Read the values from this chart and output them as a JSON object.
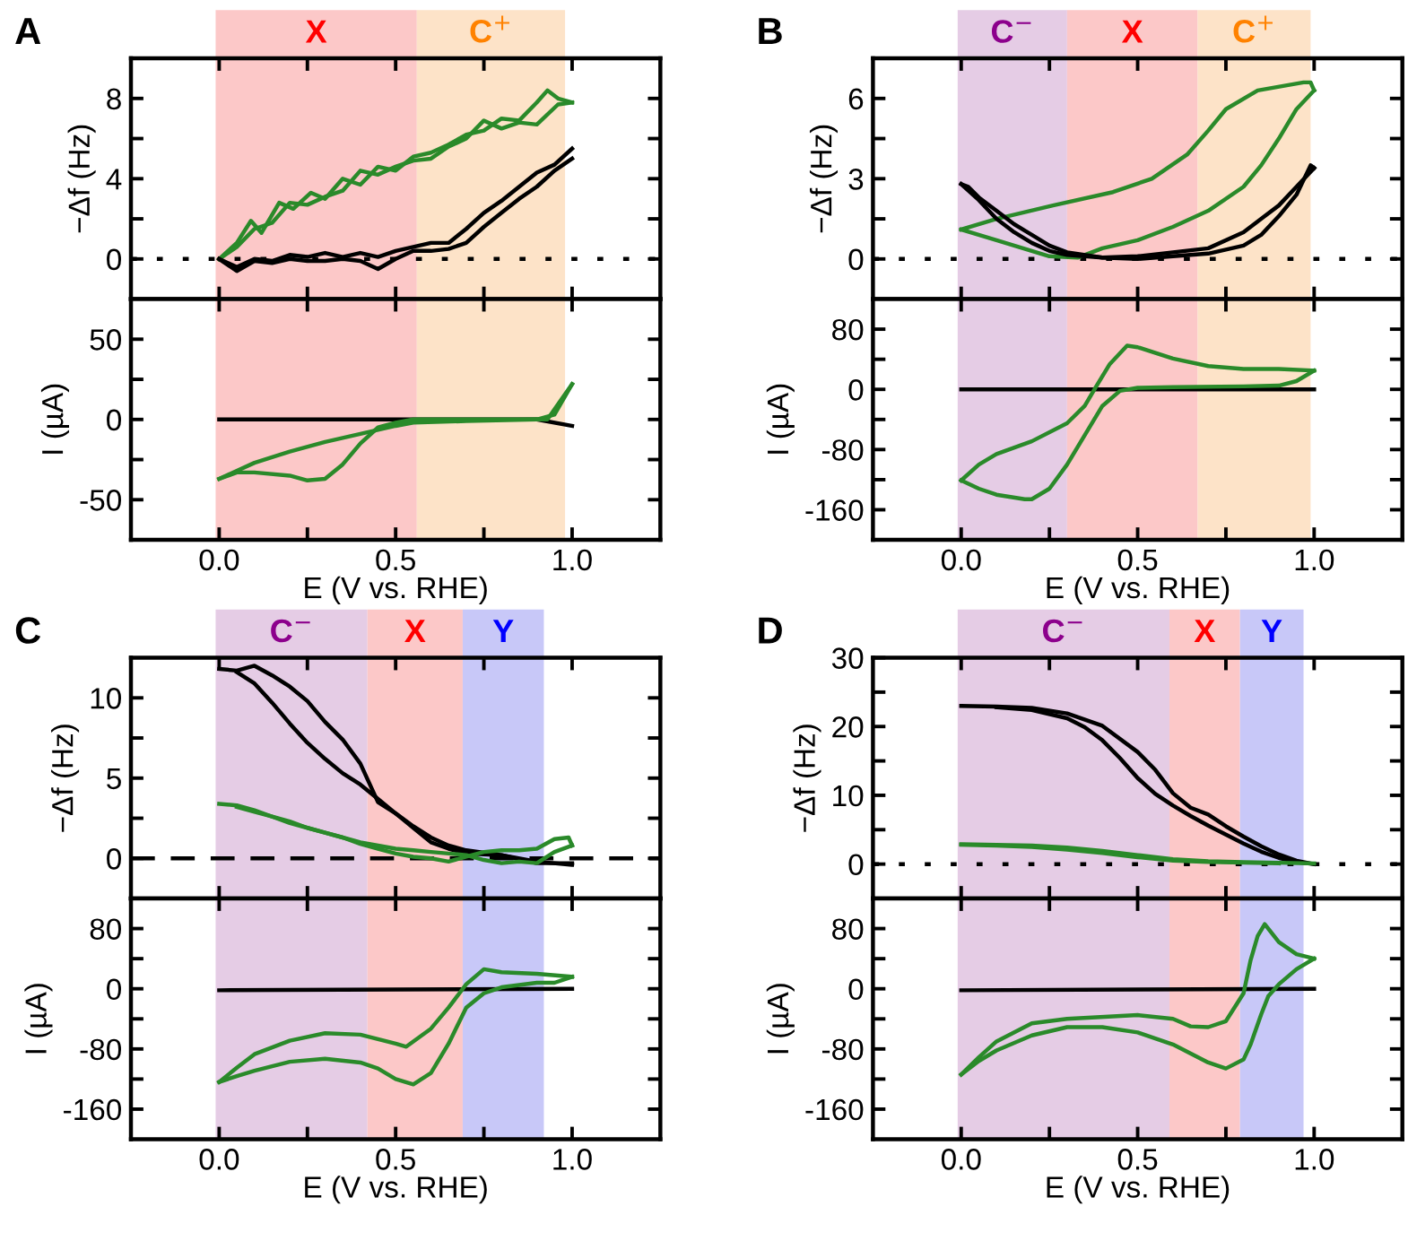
{
  "chart_data": [
    {
      "type": "line",
      "title": "A",
      "ylabel": "−Δf (Hz)",
      "xlim": [
        -0.25,
        1.25
      ],
      "ylim": [
        -2,
        10
      ],
      "tick_labels": "y",
      "xticks": [
        {
          "value": 0,
          "label": null
        },
        {
          "value": 0.25,
          "label": null
        },
        {
          "value": 0.5,
          "label": null
        },
        {
          "value": 0.75,
          "label": null
        },
        {
          "value": 1,
          "label": null
        }
      ],
      "yticks": [
        0,
        {
          "value": 2,
          "label": null
        },
        4,
        {
          "value": 6,
          "label": null
        },
        8
      ],
      "bands": [
        {
          "axis": "x",
          "from": -0.01,
          "to": 0.56,
          "label": "X",
          "color": "#fcc8c8"
        },
        {
          "axis": "x",
          "from": 0.56,
          "to": 0.98,
          "label": "C$^{+}$",
          "color": "#fde3c8"
        }
      ],
      "ref_lines": [
        {
          "axis": "y",
          "value": 0,
          "line_style": "dotted",
          "color": "#000000"
        }
      ],
      "series": [
        {
          "color": "#2a8a2a",
          "x": [
            0,
            0.05,
            0.09,
            0.12,
            0.17,
            0.21,
            0.26,
            0.3,
            0.35,
            0.4,
            0.45,
            0.5,
            0.55,
            0.6,
            0.65,
            0.7,
            0.75,
            0.8,
            0.85,
            0.9,
            0.93,
            0.96,
            1.0
          ],
          "values": [
            0,
            0.8,
            1.9,
            1.3,
            2.8,
            2.5,
            3.3,
            3.0,
            4.0,
            3.7,
            4.6,
            4.4,
            5.1,
            5.3,
            5.7,
            6.2,
            6.4,
            7.0,
            6.9,
            7.8,
            8.4,
            8.0,
            7.8
          ]
        },
        {
          "color": "#2a8a2a",
          "x": [
            1.0,
            0.96,
            0.9,
            0.85,
            0.8,
            0.75,
            0.7,
            0.65,
            0.6,
            0.55,
            0.5,
            0.45,
            0.4,
            0.35,
            0.3,
            0.25,
            0.2,
            0.15,
            0.1,
            0.05,
            0.0
          ],
          "values": [
            7.8,
            7.7,
            6.7,
            6.8,
            6.5,
            6.9,
            6.0,
            5.6,
            5.0,
            4.9,
            4.6,
            4.2,
            4.4,
            3.4,
            3.1,
            2.7,
            2.8,
            1.8,
            1.5,
            0.6,
            0.0
          ]
        },
        {
          "color": "#000000",
          "x": [
            0,
            0.05,
            0.1,
            0.15,
            0.2,
            0.25,
            0.3,
            0.35,
            0.4,
            0.45,
            0.5,
            0.55,
            0.6,
            0.65,
            0.7,
            0.75,
            0.8,
            0.85,
            0.9,
            0.95,
            1.0
          ],
          "values": [
            0,
            -0.4,
            0,
            -0.1,
            0.2,
            0.1,
            0.3,
            0.1,
            0.3,
            0.1,
            0.4,
            0.6,
            0.8,
            0.8,
            1.5,
            2.3,
            2.9,
            3.6,
            4.3,
            4.7,
            5.5
          ]
        },
        {
          "color": "#000000",
          "x": [
            1.0,
            0.95,
            0.9,
            0.85,
            0.8,
            0.75,
            0.7,
            0.65,
            0.6,
            0.55,
            0.5,
            0.45,
            0.4,
            0.35,
            0.3,
            0.25,
            0.2,
            0.15,
            0.1,
            0.05,
            0
          ],
          "values": [
            5.0,
            4.4,
            3.6,
            3.0,
            2.3,
            1.6,
            0.8,
            0.5,
            0.4,
            0.4,
            0,
            -0.5,
            -0.1,
            0,
            -0.1,
            -0.1,
            0,
            -0.2,
            -0.1,
            -0.6,
            0
          ]
        }
      ]
    },
    {
      "type": "line",
      "xlabel": "E (V vs. RHE)",
      "ylabel": "I (µA)",
      "xlim": [
        -0.25,
        1.25
      ],
      "ylim": [
        -75,
        75
      ],
      "xticks": [
        {
          "value": 0,
          "label": "0.0"
        },
        {
          "value": 0.25,
          "label": null
        },
        {
          "value": 0.5,
          "label": "0.5"
        },
        {
          "value": 0.75,
          "label": null
        },
        {
          "value": 1,
          "label": "1.0"
        }
      ],
      "yticks": [
        -50,
        {
          "value": -25,
          "label": null
        },
        0,
        {
          "value": 25,
          "label": null
        },
        50
      ],
      "bands": [
        {
          "axis": "x",
          "from": -0.01,
          "to": 0.56,
          "color": "#fcc8c8"
        },
        {
          "axis": "x",
          "from": 0.56,
          "to": 0.98,
          "color": "#fde3c8"
        }
      ],
      "series": [
        {
          "color": "#000000",
          "x": [
            0,
            0.9,
            1.0
          ],
          "values": [
            0,
            0,
            -4
          ]
        },
        {
          "color": "#2a8a2a",
          "x": [
            0,
            0.1,
            0.2,
            0.3,
            0.4,
            0.5,
            0.55,
            0.7,
            0.9,
            0.95,
            1.0
          ],
          "values": [
            -37,
            -27,
            -20,
            -14,
            -9,
            -4,
            -2,
            -1,
            0,
            3,
            22
          ]
        },
        {
          "color": "#2a8a2a",
          "x": [
            1.0,
            0.93,
            0.7,
            0.55,
            0.5,
            0.45,
            0.4,
            0.35,
            0.3,
            0.25,
            0.2,
            0.1,
            0.05,
            0
          ],
          "values": [
            22,
            0,
            0,
            0,
            -2,
            -5,
            -15,
            -28,
            -37,
            -38,
            -35,
            -33,
            -33,
            -37
          ]
        }
      ]
    },
    {
      "type": "line",
      "title": "B",
      "ylabel": "−Δf (Hz)",
      "xlim": [
        -0.25,
        1.25
      ],
      "ylim": [
        -1.5,
        7.5
      ],
      "tick_labels": "y",
      "xticks": [
        {
          "value": 0,
          "label": null
        },
        {
          "value": 0.25,
          "label": null
        },
        {
          "value": 0.5,
          "label": null
        },
        {
          "value": 0.75,
          "label": null
        },
        {
          "value": 1,
          "label": null
        }
      ],
      "yticks": [
        0,
        {
          "value": 1.5,
          "label": null
        },
        3,
        {
          "value": 4.5,
          "label": null
        },
        6
      ],
      "bands": [
        {
          "axis": "x",
          "from": -0.01,
          "to": 0.3,
          "label": "C$^{−}$",
          "color": "#e5cce5"
        },
        {
          "axis": "x",
          "from": 0.3,
          "to": 0.67,
          "label": "X",
          "color": "#fcc8c8"
        },
        {
          "axis": "x",
          "from": 0.67,
          "to": 0.99,
          "label": "C$^{+}$",
          "color": "#fde3c8"
        }
      ],
      "ref_lines": [
        {
          "axis": "y",
          "value": 0,
          "line_style": "dotted",
          "color": "#000000"
        }
      ],
      "series": [
        {
          "color": "#2a8a2a",
          "x": [
            0,
            0.1,
            0.26,
            0.43,
            0.54,
            0.64,
            0.7,
            0.75,
            0.84,
            0.97,
            0.99,
            1.0
          ],
          "values": [
            1.1,
            1.5,
            2.0,
            2.5,
            3.0,
            3.9,
            4.8,
            5.6,
            6.3,
            6.6,
            6.6,
            6.3
          ]
        },
        {
          "color": "#2a8a2a",
          "x": [
            1.0,
            0.95,
            0.9,
            0.85,
            0.8,
            0.7,
            0.6,
            0.5,
            0.4,
            0.33,
            0.25,
            0.2,
            0.1,
            0
          ],
          "values": [
            6.3,
            5.6,
            4.5,
            3.5,
            2.7,
            1.8,
            1.2,
            0.7,
            0.4,
            0.05,
            0.1,
            0.3,
            0.7,
            1.1
          ]
        },
        {
          "color": "#000000",
          "x": [
            0,
            0.05,
            0.1,
            0.15,
            0.2,
            0.25,
            0.3,
            0.4,
            0.5,
            0.6,
            0.7,
            0.8,
            0.85,
            0.9,
            0.95,
            0.99,
            1.0
          ],
          "values": [
            2.8,
            2.2,
            1.5,
            1.0,
            0.6,
            0.3,
            0.15,
            0.05,
            0.0,
            0.1,
            0.2,
            0.5,
            0.9,
            1.6,
            2.4,
            3.5,
            3.4
          ]
        },
        {
          "color": "#000000",
          "x": [
            1.0,
            0.95,
            0.9,
            0.85,
            0.8,
            0.7,
            0.6,
            0.5,
            0.4,
            0.3,
            0.25,
            0.2,
            0.15,
            0.1,
            0.05,
            0.02,
            0
          ],
          "values": [
            3.4,
            2.7,
            2.0,
            1.5,
            1.0,
            0.4,
            0.25,
            0.1,
            0.05,
            0.25,
            0.5,
            0.9,
            1.3,
            1.8,
            2.3,
            2.7,
            2.8
          ]
        }
      ]
    },
    {
      "type": "line",
      "xlabel": "E (V vs. RHE)",
      "ylabel": "I (µA)",
      "xlim": [
        -0.25,
        1.25
      ],
      "ylim": [
        -200,
        120
      ],
      "xticks": [
        {
          "value": 0,
          "label": "0.0"
        },
        {
          "value": 0.25,
          "label": null
        },
        {
          "value": 0.5,
          "label": "0.5"
        },
        {
          "value": 0.75,
          "label": null
        },
        {
          "value": 1,
          "label": "1.0"
        }
      ],
      "yticks": [
        -160,
        {
          "value": -120,
          "label": null
        },
        -80,
        {
          "value": -40,
          "label": null
        },
        0,
        {
          "value": 40,
          "label": null
        },
        80
      ],
      "bands": [
        {
          "axis": "x",
          "from": -0.01,
          "to": 0.3,
          "color": "#e5cce5"
        },
        {
          "axis": "x",
          "from": 0.3,
          "to": 0.67,
          "color": "#fcc8c8"
        },
        {
          "axis": "x",
          "from": 0.67,
          "to": 0.99,
          "color": "#fde3c8"
        }
      ],
      "series": [
        {
          "color": "#000000",
          "x": [
            0,
            1.0
          ],
          "values": [
            0,
            0
          ]
        },
        {
          "color": "#2a8a2a",
          "x": [
            0,
            0.05,
            0.1,
            0.2,
            0.3,
            0.35,
            0.38,
            0.42,
            0.47,
            0.5,
            0.6,
            0.7,
            0.8,
            0.9,
            1.0
          ],
          "values": [
            -121,
            -100,
            -86,
            -69,
            -45,
            -22,
            2,
            33,
            58,
            56,
            41,
            31,
            27,
            27,
            25
          ]
        },
        {
          "color": "#2a8a2a",
          "x": [
            1.0,
            0.95,
            0.9,
            0.8,
            0.6,
            0.5,
            0.45,
            0.4,
            0.35,
            0.3,
            0.25,
            0.2,
            0.18,
            0.1,
            0.05,
            0
          ],
          "values": [
            25,
            11,
            5,
            4,
            3,
            2,
            -2,
            -22,
            -61,
            -100,
            -132,
            -146,
            -146,
            -140,
            -132,
            -121
          ]
        }
      ]
    },
    {
      "type": "line",
      "title": "C",
      "ylabel": "−Δf (Hz)",
      "xlim": [
        -0.25,
        1.25
      ],
      "ylim": [
        -2.5,
        12.5
      ],
      "tick_labels": "y",
      "xticks": [
        {
          "value": 0,
          "label": null
        },
        {
          "value": 0.25,
          "label": null
        },
        {
          "value": 0.5,
          "label": null
        },
        {
          "value": 0.75,
          "label": null
        },
        {
          "value": 1,
          "label": null
        }
      ],
      "yticks": [
        0,
        {
          "value": 2.5,
          "label": null
        },
        5,
        {
          "value": 7.5,
          "label": null
        },
        10
      ],
      "bands": [
        {
          "axis": "x",
          "from": -0.01,
          "to": 0.42,
          "label": "C$^{−}$",
          "color": "#e5cce5"
        },
        {
          "axis": "x",
          "from": 0.42,
          "to": 0.69,
          "label": "X",
          "color": "#fcc8c8"
        },
        {
          "axis": "x",
          "from": 0.69,
          "to": 0.92,
          "label": "Y",
          "color": "#c8c8f8"
        }
      ],
      "ref_lines": [
        {
          "axis": "y",
          "value": 0,
          "line_style": "dashed",
          "color": "#000000"
        }
      ],
      "series": [
        {
          "color": "#000000",
          "x": [
            0,
            0.05,
            0.1,
            0.15,
            0.2,
            0.25,
            0.3,
            0.35,
            0.4,
            0.45,
            0.5,
            0.55,
            0.6,
            0.65,
            0.7,
            0.8,
            0.9,
            1.0
          ],
          "values": [
            11.8,
            11.7,
            12.0,
            11.4,
            10.7,
            9.8,
            8.5,
            7.4,
            5.9,
            3.5,
            2.8,
            1.9,
            1.0,
            0.6,
            0.3,
            0.2,
            -0.3,
            -0.3
          ]
        },
        {
          "color": "#000000",
          "x": [
            1.0,
            0.9,
            0.8,
            0.7,
            0.65,
            0.6,
            0.55,
            0.5,
            0.45,
            0.4,
            0.35,
            0.3,
            0.25,
            0.2,
            0.15,
            0.1,
            0.05
          ],
          "values": [
            -0.4,
            -0.2,
            0.2,
            0.5,
            0.8,
            1.3,
            2.0,
            2.8,
            3.7,
            4.6,
            5.3,
            6.2,
            7.2,
            8.4,
            9.7,
            10.9,
            11.6
          ]
        },
        {
          "color": "#2a8a2a",
          "x": [
            0,
            0.05,
            0.1,
            0.15,
            0.2,
            0.25,
            0.3,
            0.35,
            0.4,
            0.45,
            0.5,
            0.55,
            0.6,
            0.65,
            0.7,
            0.75,
            0.8,
            0.85,
            0.9,
            0.95,
            0.99,
            1.0
          ],
          "values": [
            3.4,
            3.3,
            3.0,
            2.6,
            2.2,
            1.9,
            1.6,
            1.3,
            0.9,
            0.6,
            0.3,
            0.1,
            0.0,
            -0.2,
            0.1,
            0.4,
            0.5,
            0.5,
            0.6,
            1.2,
            1.3,
            0.8
          ]
        },
        {
          "color": "#2a8a2a",
          "x": [
            1.0,
            0.95,
            0.9,
            0.85,
            0.8,
            0.75,
            0.7,
            0.65,
            0.6,
            0.55,
            0.5,
            0.45,
            0.4,
            0.35,
            0.3,
            0.25,
            0.2,
            0.15,
            0.1,
            0.05
          ],
          "values": [
            0.8,
            0.4,
            -0.3,
            -0.2,
            -0.3,
            -0.1,
            0.2,
            0.3,
            0.4,
            0.5,
            0.6,
            0.8,
            1.0,
            1.3,
            1.6,
            1.9,
            2.3,
            2.6,
            2.9,
            3.2
          ]
        }
      ]
    },
    {
      "type": "line",
      "xlabel": "E (V vs. RHE)",
      "ylabel": "I (µA)",
      "xlim": [
        -0.25,
        1.25
      ],
      "ylim": [
        -200,
        120
      ],
      "xticks": [
        {
          "value": 0,
          "label": "0.0"
        },
        {
          "value": 0.25,
          "label": null
        },
        {
          "value": 0.5,
          "label": "0.5"
        },
        {
          "value": 0.75,
          "label": null
        },
        {
          "value": 1,
          "label": "1.0"
        }
      ],
      "yticks": [
        -160,
        {
          "value": -120,
          "label": null
        },
        -80,
        {
          "value": -40,
          "label": null
        },
        0,
        {
          "value": 40,
          "label": null
        },
        80
      ],
      "bands": [
        {
          "axis": "x",
          "from": -0.01,
          "to": 0.42,
          "color": "#e5cce5"
        },
        {
          "axis": "x",
          "from": 0.42,
          "to": 0.69,
          "color": "#fcc8c8"
        },
        {
          "axis": "x",
          "from": 0.69,
          "to": 0.92,
          "color": "#c8c8f8"
        }
      ],
      "series": [
        {
          "color": "#000000",
          "x": [
            0,
            1.0
          ],
          "values": [
            -2,
            0
          ]
        },
        {
          "color": "#2a8a2a",
          "x": [
            0,
            0.05,
            0.1,
            0.2,
            0.3,
            0.4,
            0.5,
            0.53,
            0.6,
            0.65,
            0.7,
            0.75,
            0.8,
            0.9,
            1.0
          ],
          "values": [
            -124,
            -105,
            -87,
            -69,
            -59,
            -61,
            -73,
            -77,
            -53,
            -25,
            6,
            26,
            22,
            20,
            16
          ]
        },
        {
          "color": "#2a8a2a",
          "x": [
            1.0,
            0.95,
            0.9,
            0.8,
            0.75,
            0.7,
            0.65,
            0.6,
            0.55,
            0.5,
            0.45,
            0.4,
            0.3,
            0.2,
            0.1,
            0.05,
            0
          ],
          "values": [
            16,
            8,
            8,
            2,
            -6,
            -25,
            -73,
            -112,
            -127,
            -120,
            -106,
            -98,
            -93,
            -97,
            -109,
            -116,
            -124
          ]
        }
      ]
    },
    {
      "type": "line",
      "title": "D",
      "ylabel": "−Δf (Hz)",
      "xlim": [
        -0.25,
        1.25
      ],
      "ylim": [
        -5,
        30
      ],
      "tick_labels": "y",
      "xticks": [
        {
          "value": 0,
          "label": null
        },
        {
          "value": 0.25,
          "label": null
        },
        {
          "value": 0.5,
          "label": null
        },
        {
          "value": 0.75,
          "label": null
        },
        {
          "value": 1,
          "label": null
        }
      ],
      "yticks": [
        0,
        {
          "value": 5,
          "label": null
        },
        10,
        {
          "value": 15,
          "label": null
        },
        20,
        {
          "value": 25,
          "label": null
        },
        30
      ],
      "bands": [
        {
          "axis": "x",
          "from": -0.01,
          "to": 0.59,
          "label": "C$^{−}$",
          "color": "#e5cce5"
        },
        {
          "axis": "x",
          "from": 0.59,
          "to": 0.79,
          "label": "X",
          "color": "#fcc8c8"
        },
        {
          "axis": "x",
          "from": 0.79,
          "to": 0.97,
          "label": "Y",
          "color": "#c8c8f8"
        }
      ],
      "ref_lines": [
        {
          "axis": "y",
          "value": 0,
          "line_style": "dotted",
          "color": "#000000"
        }
      ],
      "series": [
        {
          "color": "#000000",
          "x": [
            0,
            0.1,
            0.2,
            0.3,
            0.4,
            0.5,
            0.55,
            0.6,
            0.65,
            0.7,
            0.75,
            0.8,
            0.85,
            0.9,
            0.95,
            1.0
          ],
          "values": [
            23.0,
            22.9,
            22.7,
            21.9,
            20.1,
            16.3,
            13.7,
            10.3,
            8.2,
            7.2,
            5.5,
            4.0,
            2.6,
            1.4,
            0.5,
            0
          ]
        },
        {
          "color": "#000000",
          "x": [
            1.0,
            0.95,
            0.9,
            0.85,
            0.8,
            0.75,
            0.7,
            0.65,
            0.6,
            0.55,
            0.5,
            0.45,
            0.4,
            0.35,
            0.3,
            0.2,
            0.1
          ],
          "values": [
            0,
            0.3,
            0.9,
            1.8,
            3.0,
            4.3,
            5.6,
            7.0,
            8.5,
            10.2,
            12.5,
            15.4,
            18.0,
            19.9,
            21.2,
            22.4,
            22.8
          ]
        },
        {
          "color": "#2a8a2a",
          "x": [
            0,
            0.1,
            0.2,
            0.3,
            0.4,
            0.5,
            0.6,
            0.7,
            0.8,
            0.9,
            1.0
          ],
          "values": [
            2.9,
            2.8,
            2.7,
            2.4,
            1.9,
            1.3,
            0.7,
            0.4,
            0.3,
            0.2,
            0.1
          ]
        },
        {
          "color": "#2a8a2a",
          "x": [
            0.9,
            0.8,
            0.7,
            0.6,
            0.5,
            0.4,
            0.3,
            0.2,
            0.1,
            0
          ],
          "values": [
            0.1,
            0.2,
            0.3,
            0.5,
            1.0,
            1.6,
            2.1,
            2.5,
            2.7,
            2.8
          ]
        }
      ]
    },
    {
      "type": "line",
      "xlabel": "E (V vs. RHE)",
      "ylabel": "I (µA)",
      "xlim": [
        -0.25,
        1.25
      ],
      "ylim": [
        -200,
        120
      ],
      "xticks": [
        {
          "value": 0,
          "label": "0.0"
        },
        {
          "value": 0.25,
          "label": null
        },
        {
          "value": 0.5,
          "label": "0.5"
        },
        {
          "value": 0.75,
          "label": null
        },
        {
          "value": 1,
          "label": "1.0"
        }
      ],
      "yticks": [
        -160,
        {
          "value": -120,
          "label": null
        },
        -80,
        {
          "value": -40,
          "label": null
        },
        0,
        {
          "value": 40,
          "label": null
        },
        80
      ],
      "bands": [
        {
          "axis": "x",
          "from": -0.01,
          "to": 0.59,
          "color": "#e5cce5"
        },
        {
          "axis": "x",
          "from": 0.59,
          "to": 0.79,
          "color": "#fcc8c8"
        },
        {
          "axis": "x",
          "from": 0.79,
          "to": 0.97,
          "color": "#c8c8f8"
        }
      ],
      "series": [
        {
          "color": "#000000",
          "x": [
            0,
            1.0
          ],
          "values": [
            -2,
            0
          ]
        },
        {
          "color": "#2a8a2a",
          "x": [
            0,
            0.05,
            0.1,
            0.2,
            0.3,
            0.5,
            0.6,
            0.65,
            0.7,
            0.75,
            0.8,
            0.82,
            0.84,
            0.86,
            0.9,
            0.95,
            1.0
          ],
          "values": [
            -114,
            -91,
            -70,
            -46,
            -40,
            -35,
            -40,
            -50,
            -51,
            -43,
            -6,
            38,
            70,
            86,
            62,
            46,
            40
          ]
        },
        {
          "color": "#2a8a2a",
          "x": [
            1.0,
            0.95,
            0.9,
            0.87,
            0.85,
            0.82,
            0.8,
            0.75,
            0.7,
            0.6,
            0.5,
            0.4,
            0.3,
            0.2,
            0.1,
            0.05,
            0
          ],
          "values": [
            40,
            26,
            6,
            -10,
            -34,
            -74,
            -94,
            -106,
            -98,
            -74,
            -58,
            -51,
            -51,
            -62,
            -82,
            -96,
            -114
          ]
        }
      ]
    }
  ]
}
